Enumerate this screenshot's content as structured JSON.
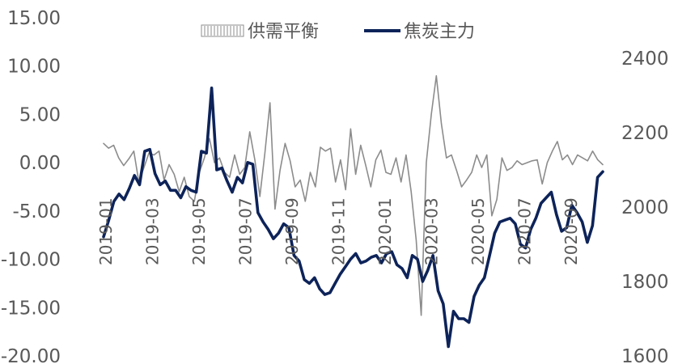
{
  "chart_data": {
    "type": "line",
    "title": "",
    "xlabel": "",
    "ylabel": "",
    "legend": {
      "position": "top",
      "items": [
        "供需平衡",
        "焦炭主力"
      ]
    },
    "grid": false,
    "left_axis": {
      "ylim": [
        -20,
        15
      ],
      "ticks": [
        "15.00",
        "10.00",
        "5.00",
        "0.00",
        "-5.00",
        "-10.00",
        "-15.00",
        "-20.00"
      ]
    },
    "right_axis": {
      "ylim": [
        1600,
        2500
      ],
      "ticks": [
        "2400",
        "2200",
        "2000",
        "1800",
        "1600"
      ]
    },
    "x_ticks": [
      "2019-01",
      "2019-03",
      "2019-05",
      "2019-07",
      "2019-09",
      "2019-11",
      "2020-01",
      "2020-03",
      "2020-05",
      "2020-07",
      "2020-09"
    ],
    "series": [
      {
        "name": "供需平衡",
        "axis": "left",
        "style": "thin line",
        "color": "#8c8c8c",
        "values": [
          2,
          1.5,
          1.8,
          0.5,
          -0.3,
          0.4,
          1.2,
          -2,
          -0.5,
          1,
          0.8,
          1.2,
          -1.8,
          -0.2,
          -1.2,
          -3,
          -1.5,
          -3.5,
          -4,
          -1,
          0.5,
          2.5,
          0,
          0.5,
          -1,
          -1.5,
          0.8,
          -1.2,
          -0.5,
          3.2,
          0.3,
          -3.5,
          1,
          6.2,
          -4.8,
          -0.8,
          2,
          0.2,
          -2.5,
          -1.8,
          -4,
          -1,
          -2.5,
          1.6,
          1.2,
          1.5,
          -2,
          0.3,
          -2.8,
          3.5,
          -1.2,
          1.8,
          -0.3,
          -2.5,
          0.3,
          1.3,
          -1,
          -1.2,
          0.5,
          -2,
          0.8,
          -3,
          -8,
          -15.8,
          0,
          5,
          9,
          4,
          0.5,
          0.8,
          -0.8,
          -2.5,
          -1.8,
          -1,
          0.8,
          -0.5,
          0.8,
          -5.5,
          -3.8,
          0.5,
          -0.8,
          -0.5,
          0.2,
          -0.2,
          0,
          0.2,
          0.3,
          -2.2,
          0,
          1.2,
          2.2,
          0.3,
          0.8,
          -0.2,
          0.8,
          0.5,
          0.2,
          1.2,
          0.3,
          -0.2
        ]
      },
      {
        "name": "焦炭主力",
        "axis": "right",
        "style": "thick line",
        "color": "#0d2359",
        "values": [
          1920,
          1965,
          2015,
          2035,
          2020,
          2050,
          2085,
          2060,
          2150,
          2155,
          2090,
          2060,
          2070,
          2045,
          2045,
          2025,
          2055,
          2045,
          2040,
          2150,
          2145,
          2320,
          2100,
          2105,
          2070,
          2040,
          2080,
          2065,
          2120,
          2115,
          1985,
          1960,
          1940,
          1915,
          1930,
          1955,
          1945,
          1870,
          1855,
          1805,
          1795,
          1810,
          1780,
          1765,
          1770,
          1795,
          1820,
          1840,
          1860,
          1875,
          1850,
          1855,
          1865,
          1870,
          1850,
          1875,
          1880,
          1845,
          1835,
          1810,
          1870,
          1860,
          1800,
          1830,
          1870,
          1775,
          1740,
          1625,
          1720,
          1700,
          1700,
          1690,
          1760,
          1790,
          1810,
          1870,
          1930,
          1960,
          1965,
          1970,
          1955,
          1900,
          1890,
          1940,
          1970,
          2010,
          2025,
          2040,
          1980,
          1935,
          1945,
          2005,
          1985,
          1960,
          1905,
          1950,
          2080,
          2095
        ]
      }
    ]
  }
}
